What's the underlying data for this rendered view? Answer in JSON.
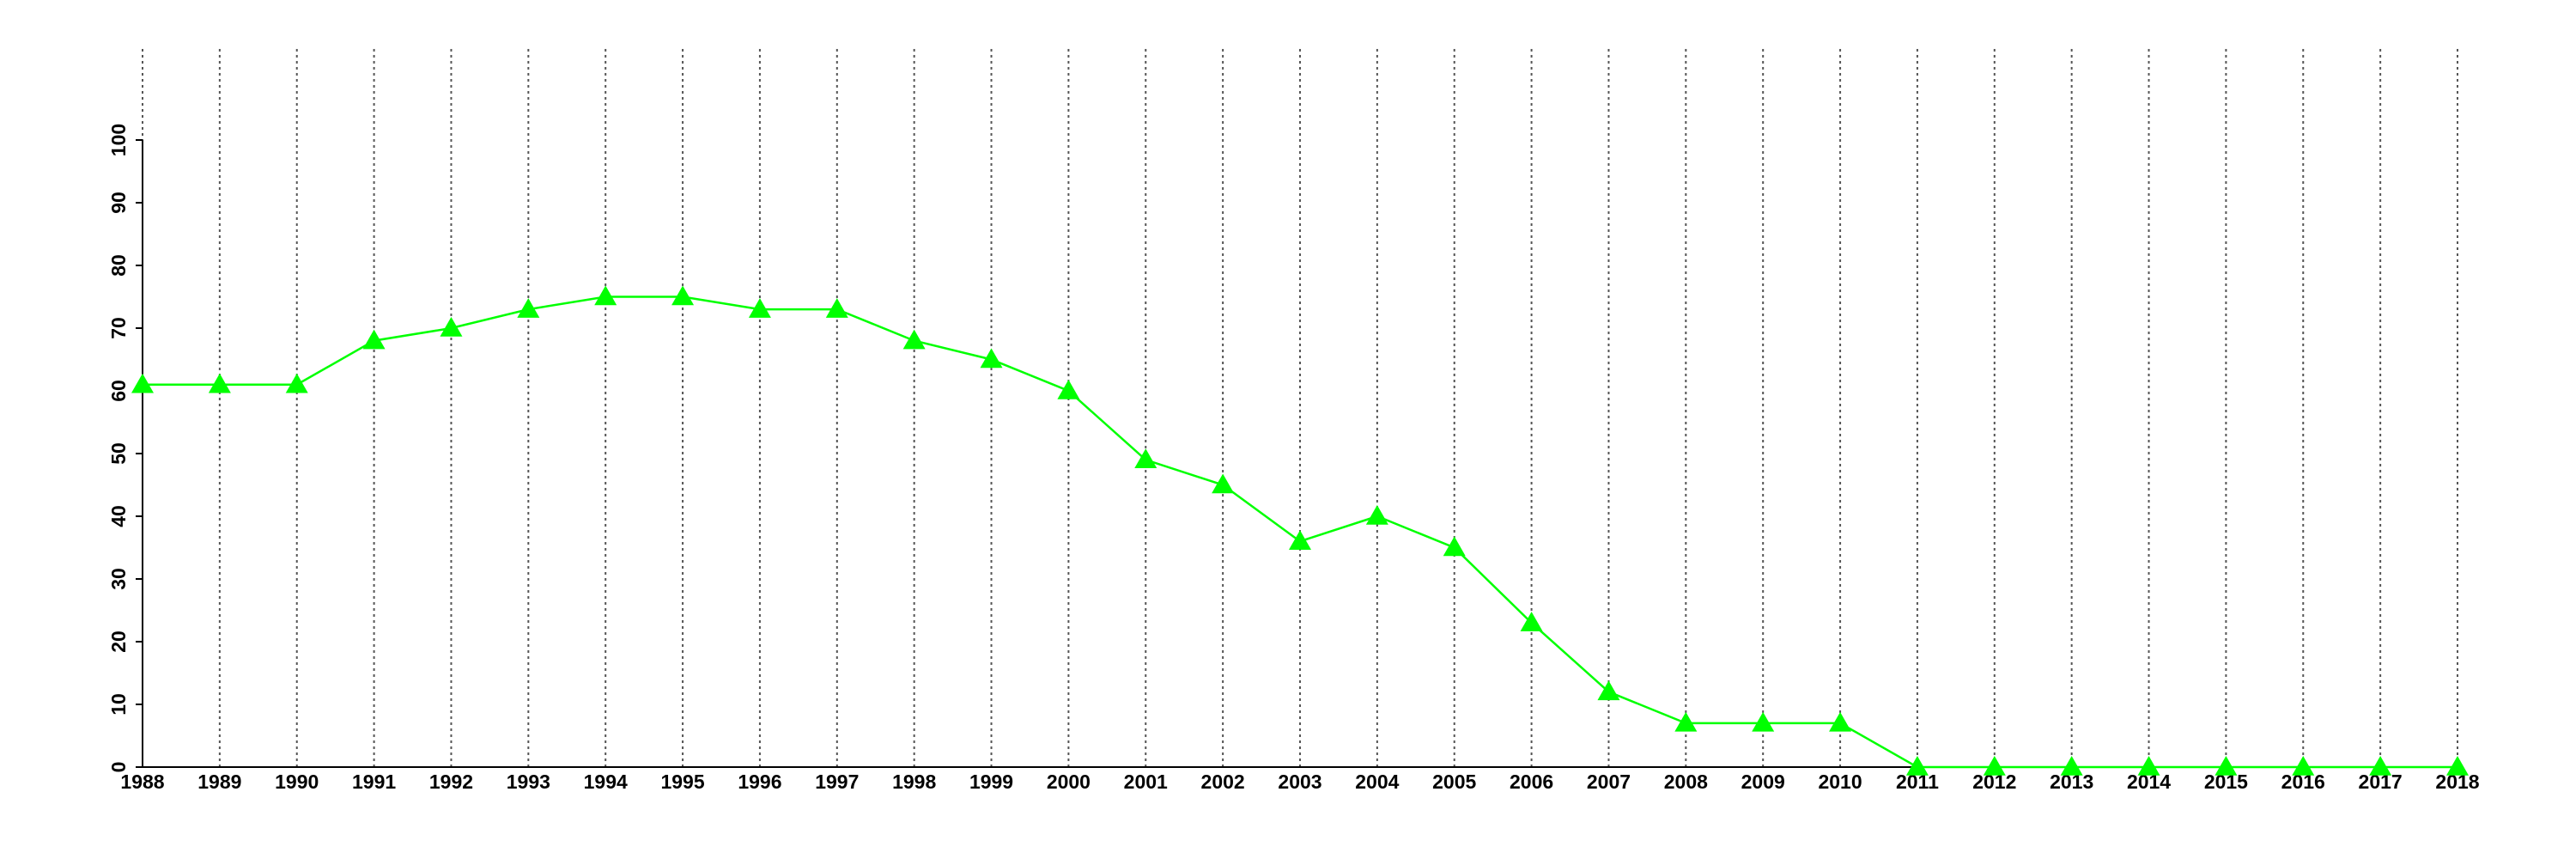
{
  "chart_data": {
    "type": "line",
    "categories": [
      "1988",
      "1989",
      "1990",
      "1991",
      "1992",
      "1993",
      "1994",
      "1995",
      "1996",
      "1997",
      "1998",
      "1999",
      "2000",
      "2001",
      "2002",
      "2003",
      "2004",
      "2005",
      "2006",
      "2007",
      "2008",
      "2009",
      "2010",
      "2011",
      "2012",
      "2013",
      "2014",
      "2015",
      "2016",
      "2017",
      "2018"
    ],
    "series": [
      {
        "color": "#00ff00",
        "marker": "triangle",
        "values": [
          61,
          61,
          61,
          68,
          70,
          73,
          75,
          75,
          73,
          73,
          68,
          65,
          60,
          49,
          45,
          36,
          40,
          35,
          23,
          12,
          7,
          7,
          7,
          0,
          0,
          0,
          0,
          0,
          0,
          0,
          0
        ]
      }
    ],
    "ylim": [
      0,
      100
    ],
    "yticks": [
      0,
      10,
      20,
      30,
      40,
      50,
      60,
      70,
      80,
      90,
      100
    ],
    "grid": "vertical"
  }
}
